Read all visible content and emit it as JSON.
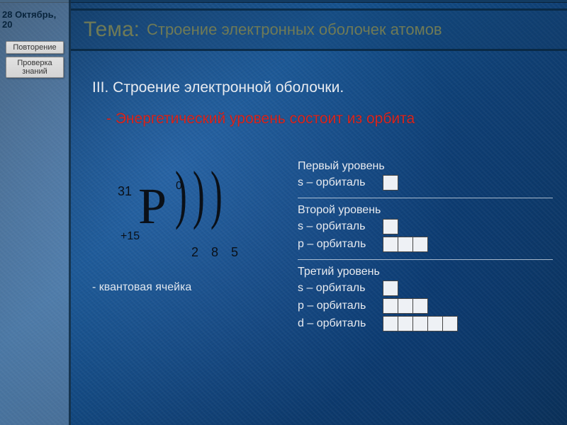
{
  "colors": {
    "heading": "#6f7a56",
    "text_light": "#e8ebf0",
    "text_dark": "#0a1018",
    "red": "#d9261f",
    "sidebar_bg": "rgba(235,235,235,0.25)",
    "border_dark": "rgba(8,36,60,0.8)",
    "cell_bg": "#eef1f5"
  },
  "date": "28 Октябрь, 20",
  "buttons": {
    "b1": "Повторение",
    "b2": "Проверка знаний"
  },
  "title": {
    "prefix": "Тема:",
    "rest": "Строение электронных оболочек атомов"
  },
  "section": "III. Строение электронной оболочки.",
  "red_text": "- Энергетический уровень состоит из орбита",
  "atom": {
    "symbol": "P",
    "mass": "31",
    "superscript": "0",
    "charge": "+15",
    "shell_counts": [
      "2",
      "8",
      "5"
    ],
    "footnote": "- квантовая ячейка"
  },
  "levels": [
    {
      "title": "Первый уровень",
      "orbitals": [
        {
          "label": "s – орбиталь",
          "cells": 1
        }
      ]
    },
    {
      "title": "Второй уровень",
      "orbitals": [
        {
          "label": "s – орбиталь",
          "cells": 1
        },
        {
          "label": "p – орбиталь",
          "cells": 3
        }
      ]
    },
    {
      "title": "Третий уровень",
      "orbitals": [
        {
          "label": "s – орбиталь",
          "cells": 1
        },
        {
          "label": "p – орбиталь",
          "cells": 3
        },
        {
          "label": "d – орбиталь",
          "cells": 5
        }
      ]
    }
  ]
}
